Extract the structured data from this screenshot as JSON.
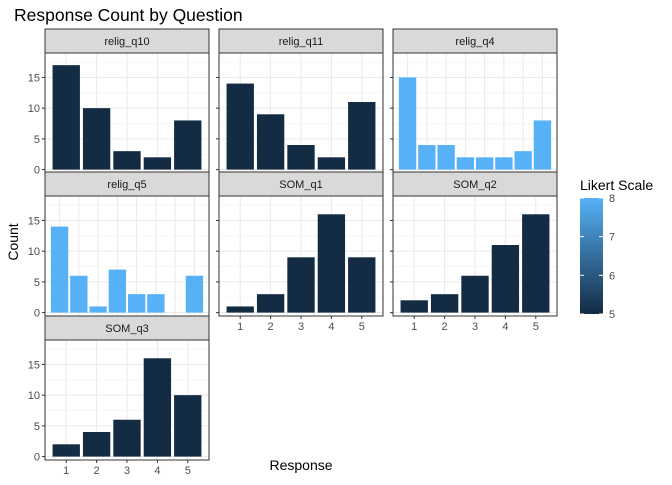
{
  "chart_data": {
    "type": "bar",
    "title": "Response Count by Question",
    "xlabel": "Response",
    "ylabel": "Count",
    "ylim": [
      0,
      18
    ],
    "y_ticks": [
      0,
      5,
      10,
      15
    ],
    "grid": true,
    "legend": {
      "title": "Likert Scale",
      "type": "colorbar",
      "min": 5,
      "max": 8,
      "ticks": [
        5,
        6,
        7,
        8
      ],
      "low_color": "#132B43",
      "high_color": "#56B1F7",
      "placement": "right"
    },
    "panels": [
      {
        "name": "relig_q10",
        "scale": 5,
        "categories": [
          "1",
          "2",
          "3",
          "4",
          "5"
        ],
        "values": [
          17,
          10,
          3,
          2,
          8
        ]
      },
      {
        "name": "relig_q11",
        "scale": 5,
        "categories": [
          "1",
          "2",
          "3",
          "4",
          "5"
        ],
        "values": [
          14,
          9,
          4,
          2,
          11
        ]
      },
      {
        "name": "relig_q4",
        "scale": 8,
        "categories": [
          "1",
          "2",
          "3",
          "4",
          "5",
          "6",
          "7",
          "8"
        ],
        "values": [
          15,
          4,
          4,
          2,
          2,
          2,
          3,
          8
        ]
      },
      {
        "name": "relig_q5",
        "scale": 8,
        "categories": [
          "1",
          "2",
          "3",
          "4",
          "5",
          "6",
          "7",
          "8"
        ],
        "values": [
          14,
          6,
          1,
          7,
          3,
          3,
          0,
          6
        ]
      },
      {
        "name": "SOM_q1",
        "scale": 5,
        "categories": [
          "1",
          "2",
          "3",
          "4",
          "5"
        ],
        "values": [
          1,
          3,
          9,
          16,
          9
        ]
      },
      {
        "name": "SOM_q2",
        "scale": 5,
        "categories": [
          "1",
          "2",
          "3",
          "4",
          "5"
        ],
        "values": [
          2,
          3,
          6,
          11,
          16
        ]
      },
      {
        "name": "SOM_q3",
        "scale": 5,
        "categories": [
          "1",
          "2",
          "3",
          "4",
          "5"
        ],
        "values": [
          2,
          4,
          6,
          16,
          10
        ]
      }
    ]
  }
}
